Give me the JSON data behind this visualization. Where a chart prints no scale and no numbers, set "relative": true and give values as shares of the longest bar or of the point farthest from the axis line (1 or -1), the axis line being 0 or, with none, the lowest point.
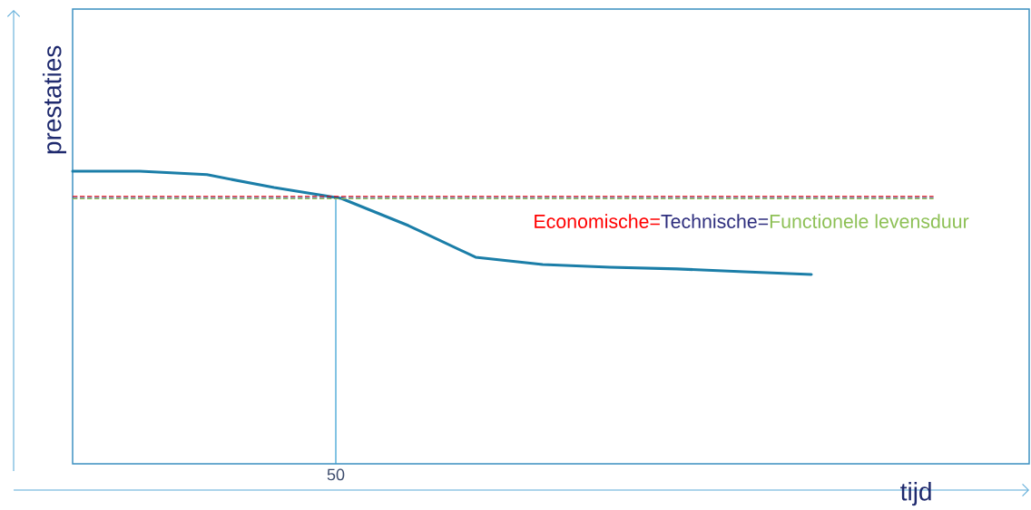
{
  "chart_data": {
    "type": "line",
    "xlabel": "tijd",
    "ylabel": "prestaties",
    "relative": true,
    "categories": [
      null,
      null,
      null,
      null,
      null,
      null,
      null,
      null,
      null,
      null,
      null,
      null
    ],
    "series": [
      {
        "color": "#1b7ea8",
        "values": [
          1.0,
          1.0,
          0.988,
          0.944,
          0.907,
          0.814,
          0.706,
          0.681,
          0.672,
          0.666,
          0.656,
          0.647
        ]
      }
    ],
    "ref_lines": [
      {
        "axis": "x",
        "value": "50",
        "color": "#2e9bd0",
        "line_style": "solid"
      },
      {
        "axis": "y",
        "value": 0.91,
        "label": "Economische=",
        "color": "#ff0000",
        "line_style": "dashed"
      },
      {
        "axis": "y",
        "value": 0.91,
        "label": "Technische=",
        "color": "#2e2e7e",
        "line_style": "dashed"
      },
      {
        "axis": "y",
        "value": 0.91,
        "label": "Functionele levensduur",
        "color": "#8dc055",
        "line_style": "dashed"
      }
    ]
  }
}
